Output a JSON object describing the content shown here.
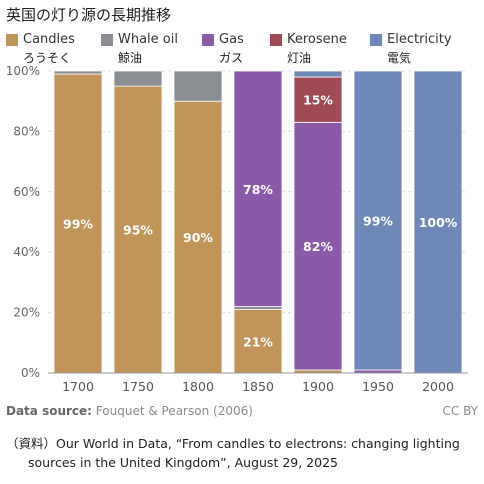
{
  "title": "英国の灯り源の長期推移",
  "legend": [
    {
      "name": "Candles",
      "jp": "ろうそく",
      "color": "#c1945a"
    },
    {
      "name": "Whale oil",
      "jp": "鯨油",
      "color": "#8a8d91"
    },
    {
      "name": "Gas",
      "jp": "ガス",
      "color": "#8a5aa8"
    },
    {
      "name": "Kerosene",
      "jp": "灯油",
      "color": "#a04a55"
    },
    {
      "name": "Electricity",
      "jp": "電気",
      "color": "#6e88b8"
    }
  ],
  "chart_data": {
    "type": "bar",
    "stacked": true,
    "categories": [
      "1700",
      "1750",
      "1800",
      "1850",
      "1900",
      "1950",
      "2000"
    ],
    "series": [
      {
        "name": "Candles",
        "color": "#c1945a",
        "values": [
          99,
          95,
          90,
          21,
          1,
          0,
          0
        ]
      },
      {
        "name": "Whale oil",
        "color": "#8a8d91",
        "values": [
          1,
          5,
          10,
          1,
          0,
          0,
          0
        ]
      },
      {
        "name": "Gas",
        "color": "#8a5aa8",
        "values": [
          0,
          0,
          0,
          78,
          82,
          1,
          0
        ]
      },
      {
        "name": "Kerosene",
        "color": "#a04a55",
        "values": [
          0,
          0,
          0,
          0,
          15,
          0,
          0
        ]
      },
      {
        "name": "Electricity",
        "color": "#6e88b8",
        "values": [
          0,
          0,
          0,
          0,
          2,
          99,
          100
        ]
      }
    ],
    "data_labels": [
      {
        "category": "1700",
        "series": "Candles",
        "text": "99%"
      },
      {
        "category": "1750",
        "series": "Candles",
        "text": "95%"
      },
      {
        "category": "1800",
        "series": "Candles",
        "text": "90%"
      },
      {
        "category": "1850",
        "series": "Candles",
        "text": "21%"
      },
      {
        "category": "1850",
        "series": "Gas",
        "text": "78%"
      },
      {
        "category": "1900",
        "series": "Gas",
        "text": "82%"
      },
      {
        "category": "1900",
        "series": "Kerosene",
        "text": "15%"
      },
      {
        "category": "1950",
        "series": "Electricity",
        "text": "99%"
      },
      {
        "category": "2000",
        "series": "Electricity",
        "text": "100%"
      }
    ],
    "yticks": [
      "0%",
      "20%",
      "40%",
      "60%",
      "80%",
      "100%"
    ],
    "ylim": [
      0,
      100
    ],
    "grid": true,
    "legend_position": "top"
  },
  "source_label": "Data source:",
  "source_text": "Fouquet & Pearson (2006)",
  "license": "CC BY",
  "note_line1": "（資料）Our World in Data, “From candles to electrons: changing lighting",
  "note_line2": "sources in the United Kingdom”, August 29, 2025"
}
